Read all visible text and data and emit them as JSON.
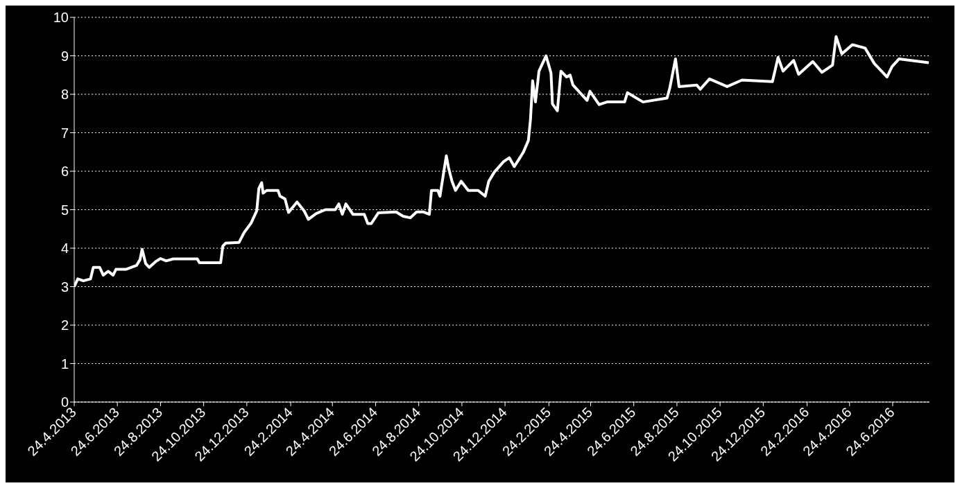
{
  "chart_data": {
    "type": "line",
    "x": [
      "2013-04-24",
      "2013-04-29",
      "2013-05-07",
      "2013-05-17",
      "2013-05-21",
      "2013-05-30",
      "2013-06-04",
      "2013-06-11",
      "2013-06-18",
      "2013-06-22",
      "2013-07-06",
      "2013-07-21",
      "2013-07-26",
      "2013-07-29",
      "2013-08-03",
      "2013-08-08",
      "2013-08-17",
      "2013-08-24",
      "2013-09-01",
      "2013-09-11",
      "2013-10-15",
      "2013-10-18",
      "2013-11-17",
      "2013-11-20",
      "2013-11-24",
      "2013-12-13",
      "2013-12-20",
      "2013-12-30",
      "2014-01-07",
      "2014-01-10",
      "2014-01-14",
      "2014-01-16",
      "2014-01-21",
      "2014-02-06",
      "2014-02-09",
      "2014-02-16",
      "2014-02-21",
      "2014-03-05",
      "2014-03-15",
      "2014-03-21",
      "2014-04-01",
      "2014-04-14",
      "2014-04-28",
      "2014-05-03",
      "2014-05-08",
      "2014-05-13",
      "2014-05-23",
      "2014-06-08",
      "2014-06-13",
      "2014-06-18",
      "2014-06-28",
      "2014-07-23",
      "2014-08-02",
      "2014-08-12",
      "2014-08-21",
      "2014-08-31",
      "2014-09-08",
      "2014-09-11",
      "2014-09-20",
      "2014-09-23",
      "2014-09-26",
      "2014-10-02",
      "2014-10-05",
      "2014-10-10",
      "2014-10-15",
      "2014-10-23",
      "2014-11-02",
      "2014-11-16",
      "2014-11-26",
      "2014-12-01",
      "2014-12-09",
      "2014-12-22",
      "2014-12-30",
      "2015-01-06",
      "2015-01-14",
      "2015-01-19",
      "2015-01-26",
      "2015-01-29",
      "2015-02-01",
      "2015-02-05",
      "2015-02-10",
      "2015-02-20",
      "2015-02-27",
      "2015-03-01",
      "2015-03-08",
      "2015-03-13",
      "2015-03-21",
      "2015-03-26",
      "2015-03-30",
      "2015-04-19",
      "2015-04-23",
      "2015-05-06",
      "2015-05-17",
      "2015-06-11",
      "2015-06-15",
      "2015-07-07",
      "2015-08-10",
      "2015-08-14",
      "2015-08-22",
      "2015-08-27",
      "2015-09-21",
      "2015-09-26",
      "2015-10-09",
      "2015-11-03",
      "2015-11-24",
      "2016-01-06",
      "2016-01-14",
      "2016-01-21",
      "2016-02-05",
      "2016-02-12",
      "2016-03-03",
      "2016-03-16",
      "2016-03-31",
      "2016-04-05",
      "2016-04-13",
      "2016-04-28",
      "2016-05-16",
      "2016-05-29",
      "2016-06-16",
      "2016-06-23",
      "2016-07-03",
      "2016-08-01",
      "2016-08-14"
    ],
    "values": [
      3.0,
      3.2,
      3.15,
      3.2,
      3.5,
      3.5,
      3.3,
      3.4,
      3.3,
      3.45,
      3.45,
      3.55,
      3.7,
      3.97,
      3.6,
      3.5,
      3.65,
      3.73,
      3.67,
      3.72,
      3.72,
      3.62,
      3.62,
      4.05,
      4.13,
      4.15,
      4.4,
      4.65,
      4.97,
      5.55,
      5.7,
      5.43,
      5.5,
      5.5,
      5.35,
      5.28,
      4.93,
      5.2,
      4.97,
      4.75,
      4.9,
      5.0,
      5.0,
      5.15,
      4.88,
      5.15,
      4.88,
      4.88,
      4.64,
      4.64,
      4.92,
      4.94,
      4.83,
      4.79,
      4.94,
      4.94,
      4.88,
      5.5,
      5.5,
      5.35,
      5.7,
      6.4,
      6.1,
      5.74,
      5.5,
      5.74,
      5.5,
      5.5,
      5.35,
      5.74,
      5.98,
      6.25,
      6.35,
      6.12,
      6.35,
      6.5,
      6.8,
      7.35,
      8.35,
      7.8,
      8.6,
      9.0,
      8.55,
      7.75,
      7.57,
      8.6,
      8.45,
      8.5,
      8.24,
      7.84,
      8.08,
      7.73,
      7.8,
      7.8,
      8.04,
      7.8,
      7.9,
      8.17,
      8.92,
      8.2,
      8.24,
      8.13,
      8.4,
      8.2,
      8.37,
      8.33,
      8.96,
      8.6,
      8.88,
      8.52,
      8.85,
      8.57,
      8.76,
      9.5,
      9.05,
      9.29,
      9.2,
      8.8,
      8.45,
      8.72,
      8.92,
      8.85,
      8.82
    ],
    "color": "#ffffff",
    "xlim": [
      "2013-04-24",
      "2016-08-15"
    ],
    "xticks": [
      {
        "value": "2013-04-24",
        "label": "24.4.2013"
      },
      {
        "value": "2013-06-24",
        "label": "24.6.2013"
      },
      {
        "value": "2013-08-24",
        "label": "24.8.2013"
      },
      {
        "value": "2013-10-24",
        "label": "24.10.2013"
      },
      {
        "value": "2013-12-24",
        "label": "24.12.2013"
      },
      {
        "value": "2014-02-24",
        "label": "24.2.2014"
      },
      {
        "value": "2014-04-24",
        "label": "24.4.2014"
      },
      {
        "value": "2014-06-24",
        "label": "24.6.2014"
      },
      {
        "value": "2014-08-24",
        "label": "24.8.2014"
      },
      {
        "value": "2014-10-24",
        "label": "24.10.2014"
      },
      {
        "value": "2014-12-24",
        "label": "24.12.2014"
      },
      {
        "value": "2015-02-24",
        "label": "24.2.2015"
      },
      {
        "value": "2015-04-24",
        "label": "24.4.2015"
      },
      {
        "value": "2015-06-24",
        "label": "24.6.2015"
      },
      {
        "value": "2015-08-24",
        "label": "24.8.2015"
      },
      {
        "value": "2015-10-24",
        "label": "24.10.2015"
      },
      {
        "value": "2015-12-24",
        "label": "24.12.2015"
      },
      {
        "value": "2016-02-24",
        "label": "24.2.2016"
      },
      {
        "value": "2016-04-24",
        "label": "24.4.2016"
      },
      {
        "value": "2016-06-24",
        "label": "24.6.2016"
      }
    ],
    "ylim": [
      0,
      10
    ],
    "yticks": [
      0,
      1,
      2,
      3,
      4,
      5,
      6,
      7,
      8,
      9,
      10
    ],
    "grid": "y",
    "marker": "none",
    "line_style": "solid"
  }
}
